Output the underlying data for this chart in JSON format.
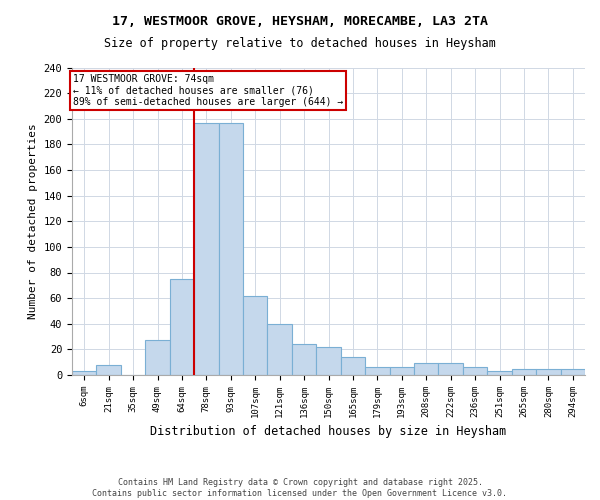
{
  "title_line1": "17, WESTMOOR GROVE, HEYSHAM, MORECAMBE, LA3 2TA",
  "title_line2": "Size of property relative to detached houses in Heysham",
  "xlabel": "Distribution of detached houses by size in Heysham",
  "ylabel": "Number of detached properties",
  "categories": [
    "6sqm",
    "21sqm",
    "35sqm",
    "49sqm",
    "64sqm",
    "78sqm",
    "93sqm",
    "107sqm",
    "121sqm",
    "136sqm",
    "150sqm",
    "165sqm",
    "179sqm",
    "193sqm",
    "208sqm",
    "222sqm",
    "236sqm",
    "251sqm",
    "265sqm",
    "280sqm",
    "294sqm"
  ],
  "values": [
    3,
    8,
    0,
    27,
    75,
    197,
    197,
    62,
    40,
    24,
    22,
    14,
    6,
    6,
    9,
    9,
    6,
    3,
    5,
    5,
    5
  ],
  "bar_color": "#c5d8ec",
  "bar_edge_color": "#7aafd4",
  "annotation_text": "17 WESTMOOR GROVE: 74sqm\n← 11% of detached houses are smaller (76)\n89% of semi-detached houses are larger (644) →",
  "annotation_box_color": "#ffffff",
  "annotation_box_edge_color": "#cc0000",
  "ylim": [
    0,
    240
  ],
  "yticks": [
    0,
    20,
    40,
    60,
    80,
    100,
    120,
    140,
    160,
    180,
    200,
    220,
    240
  ],
  "red_line_color": "#cc0000",
  "footer_text": "Contains HM Land Registry data © Crown copyright and database right 2025.\nContains public sector information licensed under the Open Government Licence v3.0.",
  "background_color": "#ffffff",
  "grid_color": "#d0d8e4"
}
